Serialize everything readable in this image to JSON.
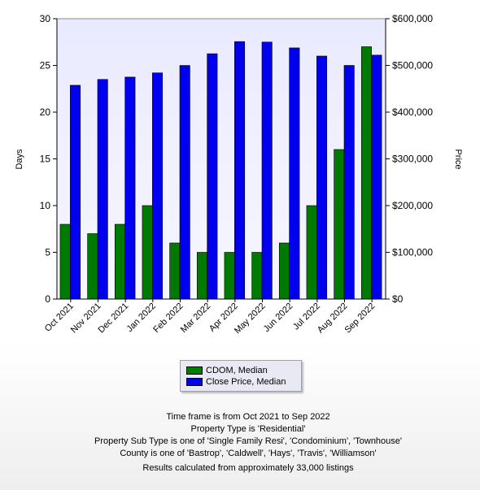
{
  "chart_data": {
    "type": "bar",
    "categories": [
      "Oct 2021",
      "Nov 2021",
      "Dec 2021",
      "Jan 2022",
      "Feb 2022",
      "Mar 2022",
      "Apr 2022",
      "May 2022",
      "Jun 2022",
      "Jul 2022",
      "Aug 2022",
      "Sep 2022"
    ],
    "series": [
      {
        "name": "CDOM, Median",
        "axis": "left",
        "color": "#007a00",
        "values": [
          8,
          7,
          8,
          10,
          6,
          5,
          5,
          5,
          6,
          10,
          16,
          27
        ]
      },
      {
        "name": "Close Price, Median",
        "axis": "right",
        "color": "#0000ee",
        "values": [
          457500,
          470000,
          475000,
          484000,
          499900,
          525000,
          551000,
          550000,
          537500,
          520000,
          500000,
          522000
        ]
      }
    ],
    "ylabel": "Days",
    "y2label": "Price",
    "ylim": [
      0,
      30
    ],
    "y2lim": [
      0,
      600000
    ],
    "yticks": [
      "0",
      "5",
      "10",
      "15",
      "20",
      "25",
      "30"
    ],
    "y2ticks": [
      "$0",
      "$100,000",
      "$200,000",
      "$300,000",
      "$400,000",
      "$500,000",
      "$600,000"
    ],
    "grid": false,
    "legend_position": "bottom-center"
  },
  "legend": {
    "items": [
      {
        "label": "CDOM, Median",
        "color": "#007a00"
      },
      {
        "label": "Close Price, Median",
        "color": "#0000ee"
      }
    ]
  },
  "notes": {
    "line1": "Time frame is from Oct 2021 to Sep 2022",
    "line2": "Property Type is 'Residential'",
    "line3": "Property Sub Type is one of 'Single Family Resi', 'Condominium', 'Townhouse'",
    "line4": "County is one of 'Bastrop', 'Caldwell', 'Hays', 'Travis', 'Williamson'",
    "line5": "Results calculated from approximately 33,000 listings"
  }
}
